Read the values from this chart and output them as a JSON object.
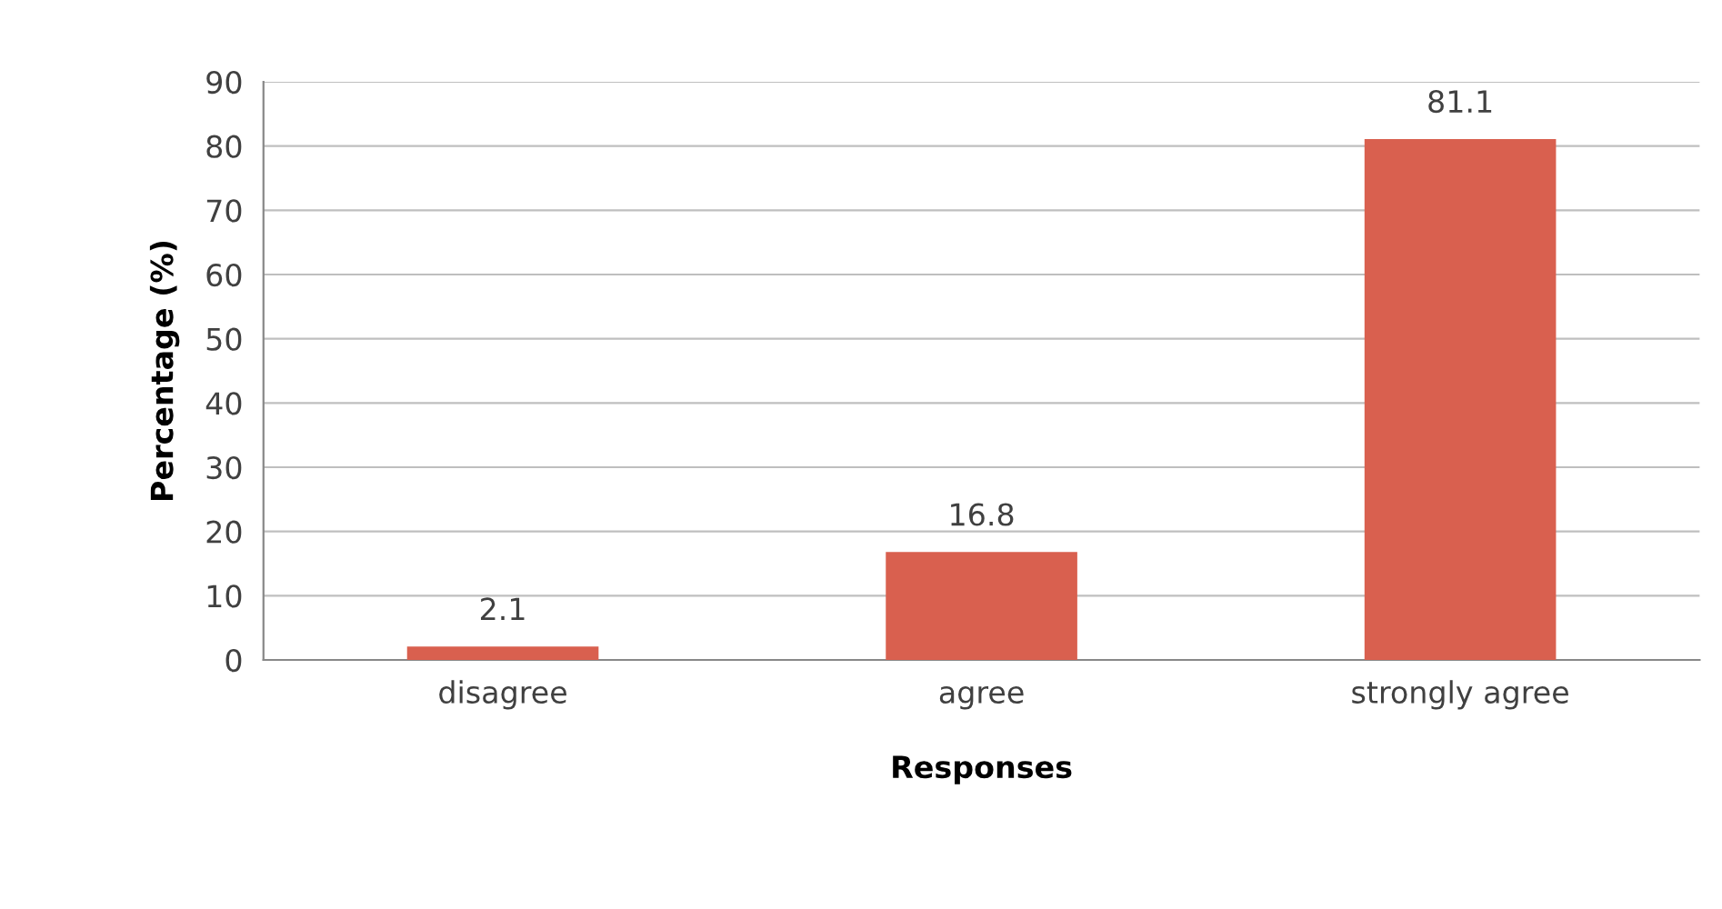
{
  "chart_data": {
    "type": "bar",
    "xlabel": "Responses",
    "ylabel": "Percentage (%)",
    "categories": [
      "disagree",
      "agree",
      "strongly agree"
    ],
    "values": [
      2.1,
      16.8,
      81.1
    ],
    "color": "#d9604f",
    "ylim": [
      0,
      90
    ],
    "yticks": [
      0,
      10,
      20,
      30,
      40,
      50,
      60,
      70,
      80,
      90
    ],
    "grid": "y",
    "data_labels": true,
    "legend": false
  }
}
